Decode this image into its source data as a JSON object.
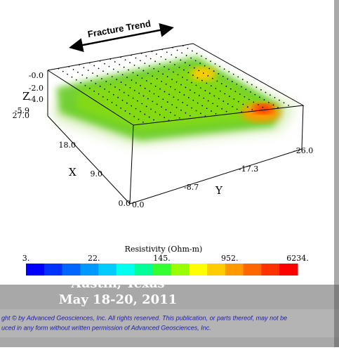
{
  "annotation": "Fracture Trend",
  "axes": {
    "z": {
      "label": "Z",
      "ticks": [
        "-0.0",
        "-2.0",
        "-4.0",
        "-5.9"
      ]
    },
    "x": {
      "label": "X",
      "ticks": [
        "27.0",
        "18.0",
        "9.0",
        "0.0"
      ]
    },
    "y": {
      "label": "Y",
      "ticks": [
        "0.0",
        "-8.7",
        "-17.3",
        "-26.0"
      ]
    }
  },
  "colorbar": {
    "title": "Resistivity (Ohm-m)",
    "labels": [
      "3.",
      "22.",
      "145.",
      "952.",
      "6234."
    ],
    "colors": [
      "#0000ff",
      "#0033ff",
      "#0066ff",
      "#0099ff",
      "#00ccff",
      "#00ffee",
      "#00ff99",
      "#33ff33",
      "#99ff00",
      "#ffff00",
      "#ffcc00",
      "#ff9900",
      "#ff6600",
      "#ff3300",
      "#ff0000"
    ]
  },
  "footer": {
    "location": "Austin, Texas",
    "date": "May 18-20, 2011",
    "copyright": [
      "ght © by Advanced Geosciences, Inc. All rights reserved. This publication, or parts thereof, may not be",
      "uced in any form without written permission of Advanced Geosciences, Inc."
    ]
  }
}
